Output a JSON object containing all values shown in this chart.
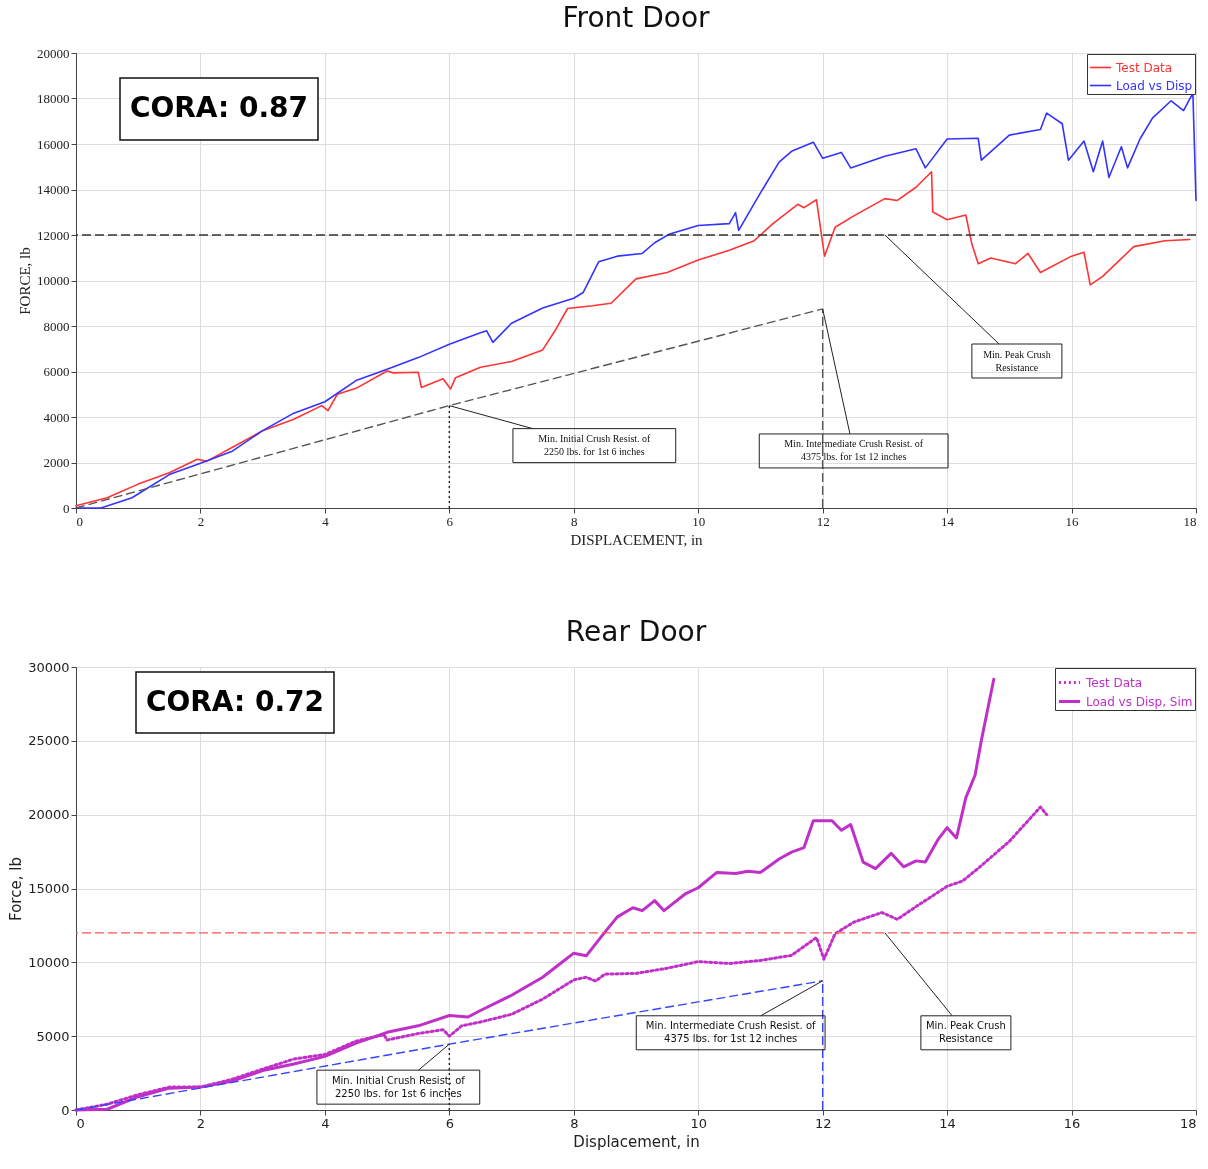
{
  "chart_data": [
    {
      "type": "line",
      "title": "Front Door",
      "xlabel": "DISPLACEMENT, in",
      "ylabel": "FORCE, lb",
      "xlim": [
        0,
        18
      ],
      "ylim": [
        0,
        20000
      ],
      "xticks": [
        0,
        2,
        4,
        6,
        8,
        10,
        12,
        14,
        16,
        18
      ],
      "yticks": [
        0,
        2000,
        4000,
        6000,
        8000,
        10000,
        12000,
        14000,
        16000,
        18000,
        20000
      ],
      "grid": true,
      "legend": "top right",
      "series": [
        {
          "name": "Test Data",
          "color": "#ff3333",
          "line_style": "solid",
          "x": [
            0,
            0.5,
            1,
            1.5,
            1.95,
            2.1,
            2.5,
            3,
            3.5,
            3.95,
            4.05,
            4.2,
            4.5,
            5,
            5.1,
            5.5,
            5.55,
            5.9,
            6.02,
            6.1,
            6.5,
            7,
            7.5,
            7.7,
            7.9,
            8.3,
            8.6,
            9,
            9.3,
            9.5,
            10,
            10.5,
            10.9,
            11.2,
            11.6,
            11.7,
            11.9,
            12.03,
            12.2,
            12.5,
            13,
            13.2,
            13.5,
            13.75,
            13.77,
            14,
            14.3,
            14.4,
            14.5,
            14.7,
            15.1,
            15.3,
            15.5,
            16,
            16.2,
            16.3,
            16.5,
            17,
            17.5,
            17.9
          ],
          "values": [
            100,
            450,
            1050,
            1550,
            2140,
            2050,
            2650,
            3400,
            3900,
            4500,
            4280,
            5000,
            5260,
            6020,
            5940,
            5970,
            5300,
            5680,
            5230,
            5730,
            6190,
            6440,
            6950,
            7800,
            8770,
            8890,
            9000,
            10070,
            10240,
            10350,
            10900,
            11330,
            11750,
            12500,
            13350,
            13200,
            13550,
            11070,
            12340,
            12840,
            13600,
            13520,
            14100,
            14780,
            13010,
            12670,
            12880,
            11580,
            10740,
            10990,
            10740,
            11190,
            10350,
            11070,
            11240,
            9810,
            10180,
            11490,
            11750,
            11800
          ]
        },
        {
          "name": "Load vs Disp",
          "color": "#3333ff",
          "line_style": "solid",
          "x": [
            0,
            0.4,
            0.9,
            1.5,
            2,
            2.5,
            3,
            3.5,
            4,
            4.5,
            5,
            5.5,
            6,
            6.5,
            6.6,
            6.7,
            7,
            7.5,
            8,
            8.15,
            8.4,
            8.7,
            9.1,
            9.3,
            9.53,
            10,
            10.5,
            10.6,
            10.65,
            11,
            11.3,
            11.5,
            11.85,
            12,
            12.3,
            12.45,
            13,
            13.5,
            13.65,
            14,
            14.5,
            14.55,
            15,
            15.5,
            15.6,
            15.85,
            15.95,
            16.2,
            16.35,
            16.5,
            16.6,
            16.8,
            16.9,
            17.1,
            17.3,
            17.6,
            17.8,
            17.95,
            18
          ],
          "values": [
            0,
            0,
            450,
            1470,
            1970,
            2480,
            3400,
            4170,
            4670,
            5600,
            6100,
            6610,
            7200,
            7700,
            7790,
            7280,
            8120,
            8790,
            9220,
            9470,
            10820,
            11070,
            11190,
            11660,
            12030,
            12420,
            12500,
            12980,
            12200,
            13850,
            15200,
            15680,
            16080,
            15370,
            15630,
            14950,
            15460,
            15790,
            14950,
            16220,
            16250,
            15290,
            16390,
            16640,
            17360,
            16890,
            15290,
            16130,
            14780,
            16130,
            14530,
            15880,
            14950,
            16220,
            17140,
            17900,
            17470,
            18240,
            13520
          ]
        },
        {
          "color": "#555555",
          "line_style": "dashed",
          "x": [
            0,
            6,
            12
          ],
          "values": [
            0,
            4500,
            8750
          ]
        },
        {
          "color": "#222222",
          "line_style": "dotted",
          "x": [
            6,
            6
          ],
          "values": [
            0,
            4500
          ]
        },
        {
          "color": "#555555",
          "line_style": "dashed",
          "x": [
            12,
            12
          ],
          "values": [
            0,
            8750
          ]
        }
      ],
      "ref_lines": [
        {
          "axis": "y",
          "value": 12000,
          "color": "#333333",
          "line_style": "dashed"
        }
      ],
      "annotations": [
        "CORA: 0.87",
        {
          "text": "Min. Initial Crush Resist. of\n2250 lbs. for 1st  6 inches",
          "x": 6,
          "y": 4500
        },
        {
          "text": "Min. Intermediate Crush Resist. of\n4375 lbs. for 1st  12 inches",
          "x": 12,
          "y": 8750
        },
        {
          "text": "Min. Peak Crush\nResistance",
          "x": 13,
          "y": 12000
        }
      ]
    },
    {
      "type": "line",
      "title": "Rear Door",
      "xlabel": "Displacement, in",
      "ylabel": "Force, lb",
      "xlim": [
        0,
        18
      ],
      "ylim": [
        0,
        30000
      ],
      "xticks": [
        0,
        2,
        4,
        6,
        8,
        10,
        12,
        14,
        16,
        18
      ],
      "yticks": [
        0,
        5000,
        10000,
        15000,
        20000,
        25000,
        30000
      ],
      "grid": true,
      "legend": "top right",
      "series": [
        {
          "name": "Test Data",
          "color": "#c030c8",
          "line_style": "dotted",
          "x": [
            0,
            0.5,
            1,
            1.5,
            2,
            2.5,
            3,
            3.5,
            4,
            4.5,
            4.95,
            5,
            5.5,
            5.9,
            6,
            6.2,
            6.5,
            7,
            7.5,
            8,
            8.2,
            8.35,
            8.5,
            9,
            9.5,
            10,
            10.5,
            11,
            11.5,
            11.9,
            12.02,
            12.2,
            12.5,
            12.95,
            13.2,
            13.5,
            14,
            14.25,
            14.5,
            15,
            15.5,
            15.6
          ],
          "values": [
            0,
            390,
            1040,
            1550,
            1550,
            2070,
            2770,
            3450,
            3760,
            4660,
            5100,
            4740,
            5180,
            5440,
            5000,
            5700,
            5960,
            6480,
            7510,
            8810,
            8990,
            8730,
            9200,
            9250,
            9600,
            10050,
            9920,
            10130,
            10470,
            11680,
            10210,
            11940,
            12720,
            13370,
            12910,
            13770,
            15150,
            15510,
            16370,
            18190,
            20520,
            20000
          ]
        },
        {
          "name": "Load vs Disp, Sim",
          "color": "#c030c8",
          "line_style": "solid",
          "x": [
            0,
            0.5,
            1,
            1.5,
            2,
            2.5,
            3,
            3.5,
            4,
            4.5,
            5,
            5.5,
            6,
            6.3,
            6.5,
            7,
            7.5,
            7.8,
            8,
            8.2,
            8.5,
            8.7,
            8.95,
            9.1,
            9.3,
            9.45,
            9.8,
            10,
            10.3,
            10.6,
            10.8,
            11,
            11.3,
            11.5,
            11.7,
            11.85,
            12.15,
            12.3,
            12.45,
            12.65,
            12.85,
            13.1,
            13.3,
            13.5,
            13.65,
            13.85,
            14,
            14.15,
            14.3,
            14.45,
            14.55,
            14.75
          ],
          "values": [
            0,
            50,
            900,
            1480,
            1550,
            1940,
            2670,
            3110,
            3630,
            4530,
            5260,
            5700,
            6400,
            6300,
            6740,
            7770,
            8990,
            9970,
            10620,
            10440,
            12050,
            13080,
            13700,
            13500,
            14180,
            13500,
            14660,
            15050,
            16090,
            16010,
            16170,
            16090,
            17000,
            17460,
            17770,
            19590,
            19590,
            18940,
            19330,
            16790,
            16350,
            17380,
            16470,
            16870,
            16790,
            18290,
            19120,
            18420,
            21140,
            22690,
            25020,
            29170
          ]
        },
        {
          "color": "#3344ff",
          "line_style": "dashed",
          "x": [
            0,
            6,
            12
          ],
          "values": [
            0,
            4460,
            8750
          ]
        },
        {
          "color": "#222222",
          "line_style": "dotted",
          "x": [
            6,
            6
          ],
          "values": [
            0,
            4460
          ]
        },
        {
          "color": "#3344ff",
          "line_style": "dashed",
          "x": [
            12,
            12
          ],
          "values": [
            0,
            8750
          ]
        }
      ],
      "ref_lines": [
        {
          "axis": "y",
          "value": 12000,
          "color": "#ff5555",
          "line_style": "dashed"
        }
      ],
      "annotations": [
        "CORA: 0.72",
        {
          "text": "Min. Initial Crush Resist. of\n2250 lbs. for 1st  6 inches",
          "x": 6,
          "y": 4460
        },
        {
          "text": "Min. Intermediate Crush Resist. of\n4375 lbs. for 1st  12 inches",
          "x": 12,
          "y": 8750
        },
        {
          "text": "Min. Peak Crush\nResistance",
          "x": 13,
          "y": 12000
        }
      ]
    }
  ]
}
